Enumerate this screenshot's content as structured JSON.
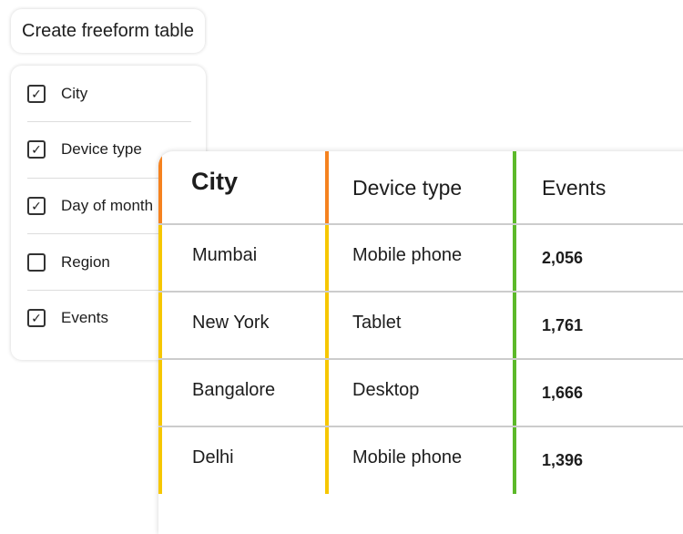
{
  "create_button": "Create freeform table",
  "options": [
    {
      "label": "City",
      "checked": true
    },
    {
      "label": "Device type",
      "checked": true
    },
    {
      "label": "Day of month",
      "checked": true
    },
    {
      "label": "Region",
      "checked": false
    },
    {
      "label": "Events",
      "checked": true
    }
  ],
  "table": {
    "headers": [
      "City",
      "Device type",
      "Events"
    ],
    "rows": [
      [
        "Mumbai",
        "Mobile phone",
        "2,056"
      ],
      [
        "New York",
        "Tablet",
        "1,761"
      ],
      [
        "Bangalore",
        "Desktop",
        "1,666"
      ],
      [
        "Delhi",
        "Mobile phone",
        "1,396"
      ]
    ]
  },
  "colors": {
    "orange": "#f5821f",
    "yellow": "#f6c700",
    "green": "#5cb92a"
  }
}
